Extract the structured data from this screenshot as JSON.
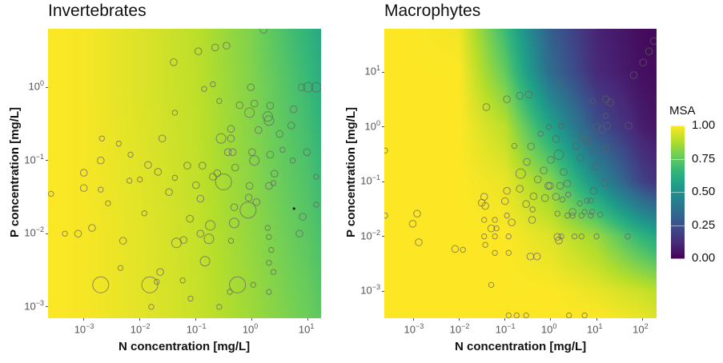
{
  "chart_data": [
    {
      "type": "heatmap",
      "title": "Invertebrates",
      "xlabel": "N concentration [mg/L]",
      "ylabel": "P concentration [mg/L]",
      "xscale": "log",
      "yscale": "log",
      "xlim": [
        0.00023,
        17
      ],
      "ylim": [
        0.0007,
        6.3
      ],
      "xticks": [
        {
          "value": 0.001,
          "base": "10",
          "exp": "-3"
        },
        {
          "value": 0.01,
          "base": "10",
          "exp": "-2"
        },
        {
          "value": 0.1,
          "base": "10",
          "exp": "-1"
        },
        {
          "value": 1,
          "base": "10",
          "exp": "0"
        },
        {
          "value": 10,
          "base": "10",
          "exp": "1"
        }
      ],
      "yticks": [
        {
          "value": 1,
          "base": "10",
          "exp": "0"
        },
        {
          "value": 0.1,
          "base": "10",
          "exp": "-1"
        },
        {
          "value": 0.01,
          "base": "10",
          "exp": "-2"
        },
        {
          "value": 0.001,
          "base": "10",
          "exp": "-3"
        }
      ],
      "grid": false,
      "surface": {
        "x": [
          0.00023,
          0.001,
          0.01,
          0.1,
          1,
          10,
          17
        ],
        "y": [
          6.3,
          1,
          0.1,
          0.01,
          0.001,
          0.0007
        ],
        "z": [
          [
            1.0,
            0.99,
            0.95,
            0.9,
            0.8,
            0.65,
            0.6
          ],
          [
            1.0,
            0.99,
            0.95,
            0.905,
            0.81,
            0.68,
            0.63
          ],
          [
            1.0,
            0.99,
            0.955,
            0.91,
            0.82,
            0.71,
            0.67
          ],
          [
            1.0,
            0.99,
            0.96,
            0.915,
            0.835,
            0.74,
            0.71
          ],
          [
            1.0,
            0.99,
            0.96,
            0.92,
            0.85,
            0.77,
            0.74
          ],
          [
            1.0,
            0.99,
            0.96,
            0.92,
            0.85,
            0.77,
            0.75
          ]
        ]
      },
      "points": [
        [
          0.001,
          0.068,
          2
        ],
        [
          0.001,
          0.042,
          2
        ],
        [
          0.002,
          0.1,
          2
        ],
        [
          0.00046,
          0.01,
          1
        ],
        [
          0.00079,
          0.01,
          2
        ],
        [
          0.002,
          0.002,
          4
        ],
        [
          0.015,
          0.002,
          4
        ],
        [
          0.55,
          0.002,
          4
        ],
        [
          0.31,
          0.051,
          4
        ],
        [
          0.025,
          0.2,
          2
        ],
        [
          0.145,
          0.0042,
          3
        ],
        [
          0.005,
          0.008,
          2
        ],
        [
          0.0045,
          0.0034,
          1
        ],
        [
          0.023,
          0.003,
          2
        ],
        [
          0.014,
          0.087,
          2
        ],
        [
          0.1,
          0.046,
          2
        ],
        [
          0.11,
          3.1,
          2
        ],
        [
          0.04,
          2.2,
          2
        ],
        [
          0.35,
          3.7,
          2
        ],
        [
          0.22,
          3.5,
          2
        ],
        [
          1.6,
          6.1,
          2
        ],
        [
          0.95,
          1,
          2
        ],
        [
          2.1,
          0.56,
          2
        ],
        [
          2,
          0.35,
          3
        ],
        [
          5,
          0.3,
          2
        ],
        [
          5.5,
          0.5,
          2
        ],
        [
          7.7,
          1,
          2
        ],
        [
          10,
          1,
          3
        ],
        [
          14,
          1,
          3
        ],
        [
          9.5,
          0.13,
          2
        ],
        [
          5.3,
          0.1,
          1
        ],
        [
          7,
          0.01,
          2
        ],
        [
          8,
          0.017,
          2
        ],
        [
          14,
          0.025,
          1
        ],
        [
          14,
          0.06,
          1
        ],
        [
          0.85,
          0.021,
          4
        ],
        [
          0.9,
          0.45,
          3
        ],
        [
          1.9,
          0.4,
          3
        ],
        [
          0.5,
          0.08,
          2
        ],
        [
          1.1,
          0.1,
          3
        ],
        [
          1,
          0.13,
          2
        ],
        [
          0.37,
          0.13,
          2
        ],
        [
          0.45,
          0.13,
          2
        ],
        [
          0.42,
          0.2,
          2
        ],
        [
          0.28,
          0.2,
          3
        ],
        [
          2.1,
          0.12,
          2
        ],
        [
          2.5,
          0.066,
          2
        ],
        [
          2,
          0.045,
          2
        ],
        [
          1.9,
          0.012,
          1
        ],
        [
          2,
          0.009,
          1
        ],
        [
          2.2,
          0.006,
          1
        ],
        [
          2,
          0.004,
          1
        ],
        [
          2.4,
          0.003,
          1
        ],
        [
          0.48,
          0.014,
          3
        ],
        [
          0.18,
          0.013,
          3
        ],
        [
          0.12,
          0.01,
          2
        ],
        [
          0.17,
          0.0085,
          3
        ],
        [
          0.42,
          0.008,
          1
        ],
        [
          0.2,
          0.06,
          2
        ],
        [
          0.07,
          0.085,
          2
        ],
        [
          0.13,
          0.085,
          2
        ],
        [
          0.033,
          0.037,
          2
        ],
        [
          0.042,
          0.058,
          1
        ],
        [
          0.042,
          0.45,
          1
        ],
        [
          0.14,
          0.95,
          1
        ],
        [
          0.2,
          1.1,
          1
        ],
        [
          0.26,
          0.65,
          1
        ],
        [
          0.6,
          0.57,
          2
        ],
        [
          1.1,
          0.6,
          2
        ],
        [
          0.0021,
          0.2,
          1
        ],
        [
          0.0042,
          0.17,
          1
        ],
        [
          0.0068,
          0.12,
          1
        ],
        [
          0.01,
          0.055,
          1
        ],
        [
          0.0065,
          0.053,
          1
        ],
        [
          0.012,
          0.019,
          1
        ],
        [
          0.0014,
          0.012,
          2
        ],
        [
          0.0027,
          0.026,
          1
        ],
        [
          0.002,
          0.04,
          1
        ],
        [
          0.00026,
          0.035,
          1
        ],
        [
          0.016,
          0.001,
          1
        ],
        [
          0.26,
          0.001,
          1
        ],
        [
          0.08,
          0.0013,
          1
        ],
        [
          0.4,
          0.0016,
          1
        ],
        [
          1.05,
          0.002,
          1
        ],
        [
          2,
          0.0016,
          1
        ],
        [
          0.02,
          0.0022,
          1
        ],
        [
          0.058,
          0.0023,
          1
        ],
        [
          0.48,
          0.023,
          2
        ],
        [
          0.12,
          0.03,
          2
        ],
        [
          0.87,
          0.031,
          2
        ],
        [
          1.2,
          0.027,
          2
        ],
        [
          0.021,
          0.07,
          2
        ],
        [
          0.24,
          0.067,
          2
        ],
        [
          0.9,
          0.045,
          2
        ],
        [
          2.4,
          0.049,
          1
        ],
        [
          1.3,
          0.26,
          2
        ],
        [
          3.1,
          0.23,
          2
        ],
        [
          3.5,
          0.14,
          1
        ],
        [
          0.42,
          0.27,
          2
        ],
        [
          0.078,
          0.016,
          2
        ],
        [
          0.06,
          0.0082,
          2
        ],
        [
          0.045,
          0.0075,
          3
        ]
      ],
      "marked_point": [
        5.6,
        0.022
      ]
    },
    {
      "type": "heatmap",
      "title": "Macrophytes",
      "xlabel": "N concentration [mg/L]",
      "ylabel": "P concentration [mg/L]",
      "xscale": "log",
      "yscale": "log",
      "xlim": [
        0.00023,
        205
      ],
      "ylim": [
        0.00032,
        62
      ],
      "xticks": [
        {
          "value": 0.001,
          "base": "10",
          "exp": "-3"
        },
        {
          "value": 0.01,
          "base": "10",
          "exp": "-2"
        },
        {
          "value": 0.1,
          "base": "10",
          "exp": "-1"
        },
        {
          "value": 1,
          "base": "10",
          "exp": "0"
        },
        {
          "value": 10,
          "base": "10",
          "exp": "1"
        },
        {
          "value": 100,
          "base": "10",
          "exp": "2"
        }
      ],
      "yticks": [
        {
          "value": 10,
          "base": "10",
          "exp": "1"
        },
        {
          "value": 1,
          "base": "10",
          "exp": "0"
        },
        {
          "value": 0.1,
          "base": "10",
          "exp": "-1"
        },
        {
          "value": 0.01,
          "base": "10",
          "exp": "-2"
        },
        {
          "value": 0.001,
          "base": "10",
          "exp": "-3"
        }
      ],
      "grid": false,
      "surface": {
        "x": [
          0.00023,
          0.001,
          0.01,
          0.1,
          1,
          10,
          100,
          205
        ],
        "y": [
          62,
          10,
          1,
          0.1,
          0.01,
          0.001,
          0.00032
        ],
        "z": [
          [
            1,
            1,
            0.98,
            0.68,
            0.3,
            0.1,
            0.03,
            0.02
          ],
          [
            1,
            1,
            1.0,
            0.76,
            0.35,
            0.12,
            0.04,
            0.03
          ],
          [
            1,
            1,
            1.0,
            0.9,
            0.58,
            0.25,
            0.08,
            0.06
          ],
          [
            1,
            1,
            1.0,
            0.97,
            0.82,
            0.5,
            0.2,
            0.15
          ],
          [
            1,
            1,
            1.0,
            1.0,
            0.95,
            0.85,
            0.65,
            0.6
          ],
          [
            1,
            1,
            1.0,
            1.0,
            1.0,
            0.97,
            0.92,
            0.9
          ],
          [
            1,
            1,
            1.0,
            1.0,
            1.0,
            1.0,
            0.97,
            0.95
          ]
        ]
      },
      "points": [
        [
          0.00096,
          0.017,
          2
        ],
        [
          0.0012,
          0.026,
          2
        ],
        [
          0.0013,
          0.0078,
          2
        ],
        [
          0.0081,
          0.0059,
          2
        ],
        [
          0.012,
          0.0057,
          1
        ],
        [
          0.039,
          2.3,
          2
        ],
        [
          0.11,
          3.2,
          2
        ],
        [
          0.21,
          3.7,
          2
        ],
        [
          0.33,
          3.9,
          2
        ],
        [
          1.6,
          6.5,
          2
        ],
        [
          105,
          15,
          2
        ],
        [
          65,
          8.8,
          2
        ],
        [
          140,
          24,
          2
        ],
        [
          180,
          37,
          2
        ],
        [
          8.3,
          3,
          1
        ],
        [
          16,
          3.2,
          2
        ],
        [
          20,
          2.8,
          2
        ],
        [
          16,
          1.6,
          1
        ],
        [
          17,
          1.05,
          2
        ],
        [
          50,
          1.05,
          2
        ],
        [
          10,
          1,
          2
        ],
        [
          13,
          0.9,
          2
        ],
        [
          5.5,
          0.7,
          3
        ],
        [
          6,
          0.55,
          2
        ],
        [
          3.6,
          0.45,
          2
        ],
        [
          8,
          0.38,
          2
        ],
        [
          16,
          0.4,
          2
        ],
        [
          4.5,
          0.27,
          2
        ],
        [
          9.5,
          0.19,
          2
        ],
        [
          15,
          0.095,
          2
        ],
        [
          8.6,
          0.068,
          2
        ],
        [
          0.16,
          0.45,
          1
        ],
        [
          0.37,
          0.44,
          2
        ],
        [
          0.3,
          0.23,
          2
        ],
        [
          0.22,
          0.14,
          3
        ],
        [
          0.21,
          0.074,
          2
        ],
        [
          0.11,
          0.068,
          2
        ],
        [
          0.1,
          0.044,
          2
        ],
        [
          0.035,
          0.053,
          2
        ],
        [
          0.037,
          0.036,
          2
        ],
        [
          0.031,
          0.041,
          2
        ],
        [
          0.035,
          0.02,
          1
        ],
        [
          0.05,
          0.014,
          2
        ],
        [
          0.06,
          0.02,
          1
        ],
        [
          0.065,
          0.014,
          1
        ],
        [
          0.035,
          0.01,
          1
        ],
        [
          0.06,
          0.01,
          1
        ],
        [
          0.12,
          0.01,
          1
        ],
        [
          0.037,
          0.007,
          1
        ],
        [
          0.06,
          0.005,
          1
        ],
        [
          0.12,
          0.005,
          1
        ],
        [
          0.36,
          0.0043,
          2
        ],
        [
          0.5,
          0.0043,
          2
        ],
        [
          0.05,
          0.0013,
          1
        ],
        [
          0.11,
          0.024,
          1
        ],
        [
          0.14,
          0.018,
          2
        ],
        [
          0.29,
          0.039,
          2
        ],
        [
          0.42,
          0.054,
          2
        ],
        [
          0.39,
          0.02,
          2
        ],
        [
          0.4,
          0.031,
          1
        ],
        [
          0.52,
          0.11,
          2
        ],
        [
          0.7,
          0.16,
          2
        ],
        [
          0.88,
          0.084,
          2
        ],
        [
          0.96,
          0.084,
          2
        ],
        [
          0.75,
          0.05,
          2
        ],
        [
          1.3,
          0.053,
          2
        ],
        [
          1.6,
          0.084,
          2
        ],
        [
          1.8,
          0.047,
          1
        ],
        [
          2.3,
          0.092,
          2
        ],
        [
          2.4,
          0.058,
          1
        ],
        [
          1.9,
          0.15,
          2
        ],
        [
          1.0,
          0.25,
          2
        ],
        [
          1.5,
          0.31,
          3
        ],
        [
          1.4,
          0.026,
          1
        ],
        [
          1.4,
          0.0098,
          2
        ],
        [
          1.5,
          0.0084,
          2
        ],
        [
          1.7,
          0.01,
          1
        ],
        [
          3.3,
          0.01,
          1
        ],
        [
          4.7,
          0.01,
          1
        ],
        [
          10,
          0.01,
          1
        ],
        [
          48,
          0.01,
          1
        ],
        [
          2.3,
          0.024,
          1
        ],
        [
          3,
          0.024,
          1
        ],
        [
          4.7,
          0.024,
          1
        ],
        [
          7.5,
          0.024,
          1
        ],
        [
          12,
          0.025,
          1
        ],
        [
          3,
          0.028,
          2
        ],
        [
          5.5,
          0.028,
          1
        ],
        [
          8,
          0.028,
          1
        ],
        [
          4.3,
          0.04,
          1
        ],
        [
          6.2,
          0.045,
          1
        ],
        [
          7.5,
          0.045,
          1
        ],
        [
          0.00024,
          0.37,
          1
        ],
        [
          0.00024,
          0.024,
          1
        ],
        [
          0.12,
          0.00036,
          1
        ],
        [
          0.18,
          0.00036,
          1
        ],
        [
          0.29,
          0.00036,
          1
        ],
        [
          2.5,
          0.00036,
          1
        ],
        [
          5.5,
          0.00036,
          1
        ],
        [
          0.9,
          1.0,
          1
        ],
        [
          1.7,
          1.05,
          1
        ],
        [
          1.3,
          0.6,
          2
        ],
        [
          0.6,
          0.75,
          1
        ]
      ]
    }
  ],
  "legend": {
    "title": "MSA",
    "position": "right",
    "ticks": [
      {
        "value": 1.0,
        "label": "1.00"
      },
      {
        "value": 0.75,
        "label": "0.75"
      },
      {
        "value": 0.5,
        "label": "0.50"
      },
      {
        "value": 0.25,
        "label": "0.25"
      },
      {
        "value": 0.0,
        "label": "0.00"
      }
    ],
    "colormap": [
      "#440154",
      "#482878",
      "#3e4989",
      "#31688e",
      "#26828e",
      "#1f9e89",
      "#35b779",
      "#6ece58",
      "#b5de2b",
      "#fde725"
    ]
  }
}
